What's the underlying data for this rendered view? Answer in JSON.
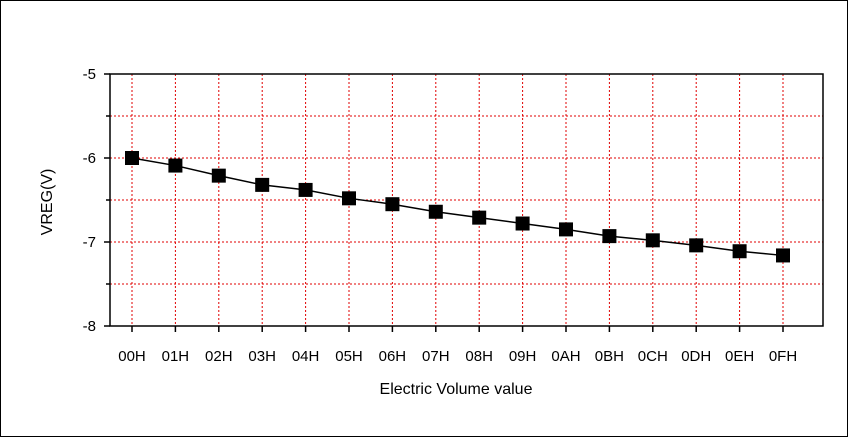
{
  "chart_data": {
    "type": "line",
    "title": "",
    "xlabel": "Electric Volume value",
    "ylabel": "VREG(V)",
    "categories": [
      "00H",
      "01H",
      "02H",
      "03H",
      "04H",
      "05H",
      "06H",
      "07H",
      "08H",
      "09H",
      "0AH",
      "0BH",
      "0CH",
      "0DH",
      "0EH",
      "0FH"
    ],
    "series": [
      {
        "values": [
          -6.0,
          -6.09,
          -6.21,
          -6.32,
          -6.38,
          -6.48,
          -6.55,
          -6.64,
          -6.71,
          -6.78,
          -6.85,
          -6.93,
          -6.98,
          -7.04,
          -7.11,
          -7.16
        ]
      }
    ],
    "ylim": [
      -8,
      -5
    ],
    "yticks": [
      -5,
      -6,
      -7,
      -8
    ],
    "grid": true,
    "grid_color": "#e00000",
    "line_color": "#000000",
    "marker": "square"
  }
}
